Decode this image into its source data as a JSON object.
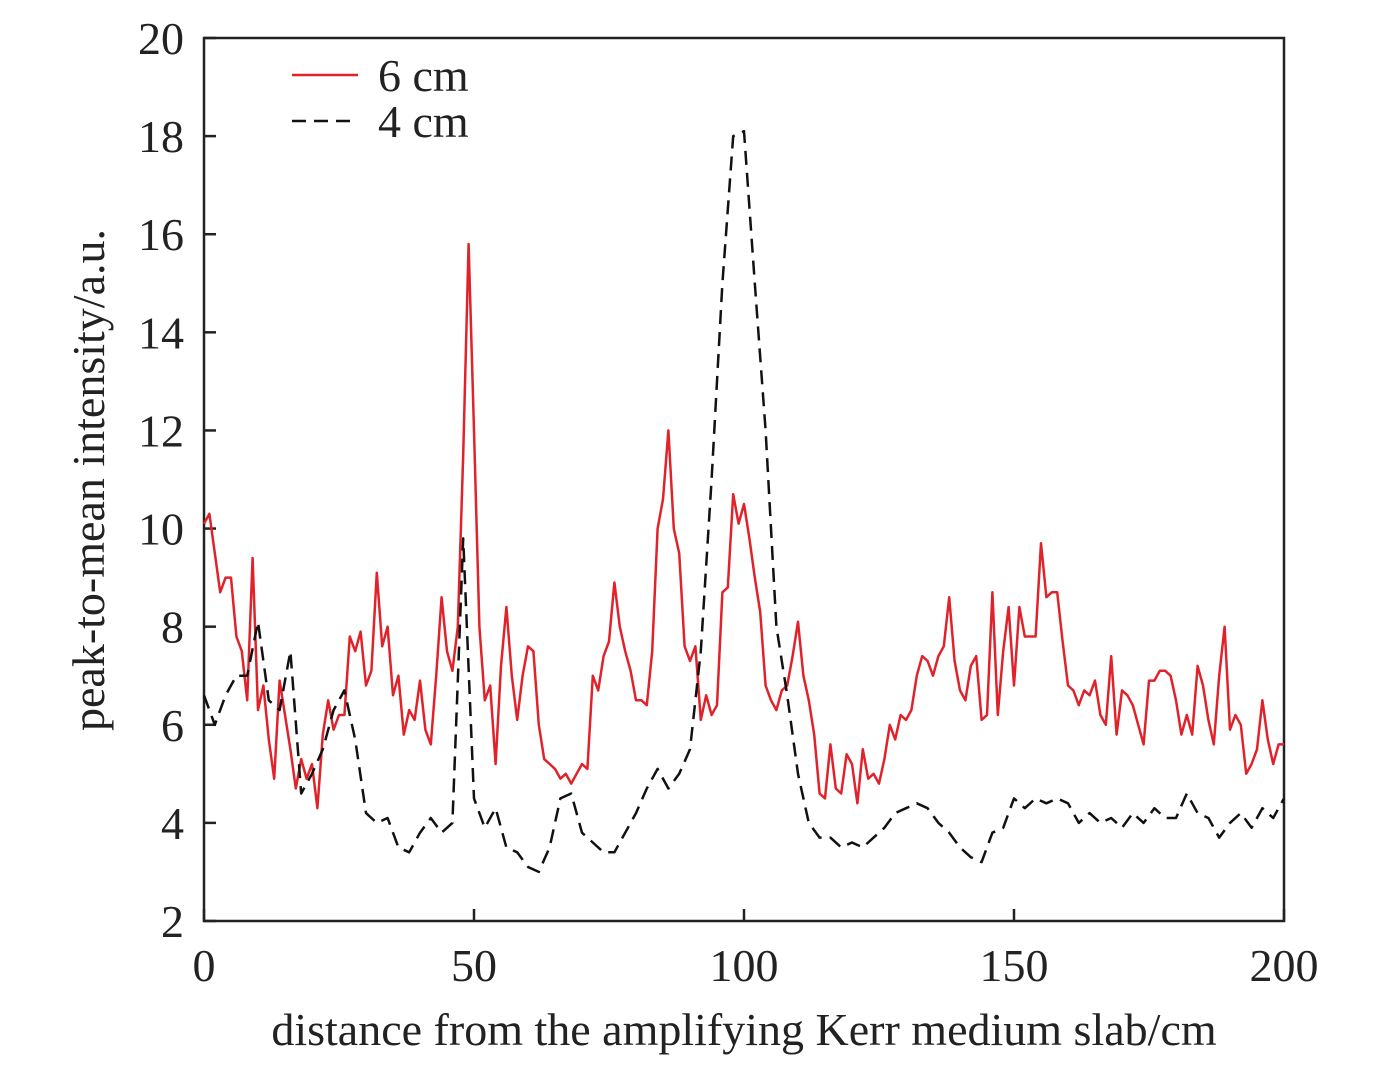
{
  "chart_data": {
    "type": "line",
    "xlabel": "distance from the amplifying Kerr medium slab/cm",
    "ylabel": "peak-to-mean intensity/a.u.",
    "xlim": [
      0,
      200
    ],
    "xticks": [
      0,
      50,
      100,
      150,
      200
    ],
    "ylim": [
      2,
      20
    ],
    "yticks": [
      2,
      4,
      6,
      8,
      10,
      12,
      14,
      16,
      18,
      20
    ],
    "legend": "upper left",
    "series": [
      {
        "name": "6 cm",
        "color": "#e0232b",
        "dash": "solid",
        "x": [
          0,
          1,
          2,
          3,
          4,
          5,
          6,
          7,
          8,
          9,
          10,
          11,
          12,
          13,
          14,
          15,
          16,
          17,
          18,
          19,
          20,
          21,
          22,
          23,
          24,
          25,
          26,
          27,
          28,
          29,
          30,
          31,
          32,
          33,
          34,
          35,
          36,
          37,
          38,
          39,
          40,
          41,
          42,
          43,
          44,
          45,
          46,
          47,
          48,
          49,
          50,
          51,
          52,
          53,
          54,
          55,
          56,
          57,
          58,
          59,
          60,
          61,
          62,
          63,
          64,
          65,
          66,
          67,
          68,
          69,
          70,
          71,
          72,
          73,
          74,
          75,
          76,
          77,
          78,
          79,
          80,
          81,
          82,
          83,
          84,
          85,
          86,
          87,
          88,
          89,
          90,
          91,
          92,
          93,
          94,
          95,
          96,
          97,
          98,
          99,
          100,
          101,
          102,
          103,
          104,
          105,
          106,
          107,
          108,
          109,
          110,
          111,
          112,
          113,
          114,
          115,
          116,
          117,
          118,
          119,
          120,
          121,
          122,
          123,
          124,
          125,
          126,
          127,
          128,
          129,
          130,
          131,
          132,
          133,
          134,
          135,
          136,
          137,
          138,
          139,
          140,
          141,
          142,
          143,
          144,
          145,
          146,
          147,
          148,
          149,
          150,
          151,
          152,
          153,
          154,
          155,
          156,
          157,
          158,
          159,
          160,
          161,
          162,
          163,
          164,
          165,
          166,
          167,
          168,
          169,
          170,
          171,
          172,
          173,
          174,
          175,
          176,
          177,
          178,
          179,
          180,
          181,
          182,
          183,
          184,
          185,
          186,
          187,
          188,
          189,
          190,
          191,
          192,
          193,
          194,
          195,
          196,
          197,
          198,
          199,
          200
        ],
        "values": [
          10.1,
          10.3,
          9.5,
          8.7,
          9.0,
          9.0,
          7.8,
          7.5,
          6.5,
          9.4,
          6.3,
          6.8,
          5.7,
          4.9,
          6.9,
          6.2,
          5.5,
          4.7,
          5.3,
          4.9,
          5.2,
          4.3,
          5.8,
          6.5,
          5.9,
          6.2,
          6.2,
          7.8,
          7.5,
          7.9,
          6.8,
          7.1,
          9.1,
          7.6,
          8.0,
          6.6,
          7.0,
          5.8,
          6.3,
          6.1,
          6.9,
          5.9,
          5.6,
          7.0,
          8.6,
          7.5,
          7.1,
          8.0,
          11.5,
          15.8,
          12.0,
          8.0,
          6.5,
          6.8,
          5.2,
          7.2,
          8.4,
          7.0,
          6.1,
          7.0,
          7.6,
          7.5,
          6.0,
          5.3,
          5.2,
          5.1,
          4.9,
          5.0,
          4.8,
          5.0,
          5.2,
          5.1,
          7.0,
          6.7,
          7.4,
          7.7,
          8.9,
          8.0,
          7.5,
          7.1,
          6.5,
          6.5,
          6.4,
          7.5,
          10.0,
          10.6,
          12.0,
          10.0,
          9.5,
          7.6,
          7.3,
          7.6,
          6.1,
          6.6,
          6.2,
          6.4,
          8.7,
          8.8,
          10.7,
          10.1,
          10.5,
          9.8,
          9.0,
          8.3,
          6.8,
          6.5,
          6.3,
          6.7,
          6.8,
          7.4,
          8.1,
          7.0,
          6.5,
          5.8,
          4.6,
          4.5,
          5.6,
          4.7,
          4.6,
          5.4,
          5.2,
          4.4,
          5.5,
          4.9,
          5.0,
          4.8,
          5.3,
          6.0,
          5.7,
          6.2,
          6.1,
          6.3,
          7.0,
          7.4,
          7.3,
          7.0,
          7.4,
          7.6,
          8.6,
          7.3,
          6.7,
          6.5,
          7.2,
          7.4,
          6.1,
          6.2,
          8.7,
          6.2,
          7.5,
          8.4,
          6.8,
          8.4,
          7.8,
          7.8,
          7.8,
          9.7,
          8.6,
          8.7,
          8.7,
          7.7,
          6.8,
          6.7,
          6.4,
          6.7,
          6.6,
          6.9,
          6.2,
          6.0,
          7.4,
          5.8,
          6.7,
          6.6,
          6.4,
          6.0,
          5.6,
          6.9,
          6.9,
          7.1,
          7.1,
          7.0,
          6.5,
          5.8,
          6.2,
          5.8,
          7.2,
          6.8,
          6.1,
          5.6,
          7.0,
          8.0,
          5.9,
          6.2,
          6.0,
          5.0,
          5.2,
          5.5,
          6.5,
          5.7,
          5.2,
          5.6,
          5.6
        ]
      },
      {
        "name": "4 cm",
        "color": "#111111",
        "dash": "dashed",
        "x": [
          0,
          2,
          4,
          6,
          8,
          10,
          12,
          14,
          16,
          18,
          20,
          22,
          24,
          26,
          28,
          30,
          32,
          34,
          36,
          38,
          40,
          42,
          44,
          46,
          48,
          50,
          52,
          54,
          56,
          58,
          60,
          62,
          64,
          66,
          68,
          70,
          72,
          74,
          76,
          78,
          80,
          82,
          84,
          86,
          88,
          90,
          92,
          94,
          96,
          98,
          100,
          102,
          104,
          106,
          108,
          110,
          112,
          114,
          116,
          118,
          120,
          122,
          124,
          126,
          128,
          130,
          132,
          134,
          136,
          138,
          140,
          142,
          144,
          146,
          148,
          150,
          152,
          154,
          156,
          158,
          160,
          162,
          164,
          166,
          168,
          170,
          172,
          174,
          176,
          178,
          180,
          182,
          184,
          186,
          188,
          190,
          192,
          194,
          196,
          198,
          200
        ],
        "values": [
          6.6,
          6.0,
          6.6,
          7.0,
          7.0,
          8.1,
          6.5,
          6.3,
          7.5,
          4.6,
          5.0,
          5.5,
          6.3,
          6.7,
          5.7,
          4.2,
          4.0,
          4.1,
          3.5,
          3.4,
          3.8,
          4.1,
          3.8,
          4.0,
          9.8,
          4.5,
          3.9,
          4.3,
          3.5,
          3.4,
          3.1,
          3.0,
          3.5,
          4.5,
          4.6,
          3.8,
          3.6,
          3.4,
          3.4,
          3.8,
          4.2,
          4.7,
          5.1,
          4.7,
          5.0,
          5.5,
          7.5,
          11.0,
          15.0,
          18.0,
          18.1,
          15.0,
          12.0,
          8.0,
          6.6,
          5.0,
          4.0,
          3.7,
          3.7,
          3.5,
          3.6,
          3.5,
          3.7,
          3.9,
          4.2,
          4.3,
          4.4,
          4.3,
          4.0,
          3.8,
          3.5,
          3.3,
          3.2,
          3.8,
          3.9,
          4.5,
          4.3,
          4.5,
          4.4,
          4.5,
          4.4,
          4.0,
          4.2,
          4.0,
          4.1,
          3.9,
          4.2,
          4.0,
          4.3,
          4.1,
          4.1,
          4.6,
          4.2,
          4.1,
          3.7,
          4.0,
          4.2,
          3.9,
          4.3,
          4.1,
          4.5
        ]
      }
    ]
  }
}
